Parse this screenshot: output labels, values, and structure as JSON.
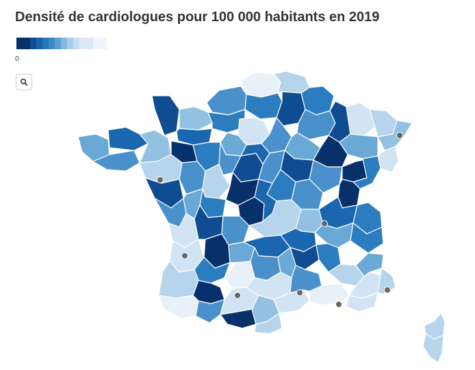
{
  "title": "Densité de cardiologues pour 100 000 habitants en 2019",
  "legend": {
    "min_label": "0",
    "colors": [
      "#08306b",
      "#0d4a94",
      "#1764ab",
      "#2878b8",
      "#3a8bc4",
      "#5a9fd0",
      "#82b9de",
      "#a9cfe8",
      "#c9def0",
      "#dde9f6",
      "#eef5fc"
    ]
  },
  "zoom_button": {
    "icon": "search-icon"
  },
  "palette": {
    "c0": "#08306b",
    "c1": "#0f4c92",
    "c2": "#1a67b0",
    "c3": "#2c7dc0",
    "c4": "#4a91cc",
    "c5": "#6aa8d6",
    "c6": "#93c1e2",
    "c7": "#b6d4ec",
    "c8": "#d2e3f3",
    "c9": "#e8f1fa"
  }
}
